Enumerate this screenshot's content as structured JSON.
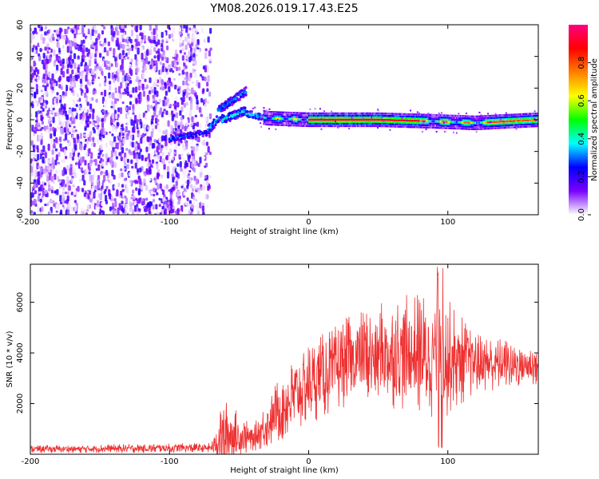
{
  "figure_title": "YM08.2026.019.17.43.E25",
  "chart_data": [
    {
      "type": "heatmap",
      "title": "YM08.2026.019.17.43.E25",
      "xlabel": "Height of straight line (km)",
      "ylabel": "Frequency (Hz)",
      "xlim": [
        -200,
        165
      ],
      "ylim": [
        -60,
        60
      ],
      "x_ticks": [
        -200,
        -100,
        0,
        100
      ],
      "y_ticks": [
        -60,
        -40,
        -20,
        0,
        20,
        40,
        60
      ],
      "grid": false,
      "colorbar": {
        "label": "Normalized spectral amplitude",
        "range": [
          0,
          1
        ],
        "ticks": [
          0.0,
          0.2,
          0.4,
          0.6,
          0.8
        ],
        "colors": [
          "#ffffff",
          "#7a00ff",
          "#0000ff",
          "#00ffff",
          "#00ff00",
          "#ffff00",
          "#ff7f00",
          "#ff0000",
          "#ff0080"
        ]
      },
      "ridge": {
        "description_points": [
          {
            "x": -100,
            "freq": -12,
            "amp": 0.3
          },
          {
            "x": -80,
            "freq": -8,
            "amp": 0.35
          },
          {
            "x": -70,
            "freq": 2,
            "amp": 0.4
          },
          {
            "x": -60,
            "freq": 8,
            "amp": 0.4
          },
          {
            "x": -45,
            "freq": 17,
            "amp": 0.35
          },
          {
            "x": -45,
            "freq": 4,
            "amp": 0.4
          },
          {
            "x": -30,
            "freq": 1,
            "amp": 0.5
          },
          {
            "x": 0,
            "freq": 0,
            "amp": 0.9
          },
          {
            "x": 50,
            "freq": 0,
            "amp": 0.95
          },
          {
            "x": 90,
            "freq": -1,
            "amp": 0.6
          },
          {
            "x": 120,
            "freq": -2,
            "amp": 0.55
          },
          {
            "x": 165,
            "freq": 0,
            "amp": 0.85
          }
        ]
      }
    },
    {
      "type": "line",
      "xlabel": "Height of straight line (km)",
      "ylabel": "SNR (10 * v/v)",
      "xlim": [
        -200,
        165
      ],
      "ylim": [
        0,
        7500
      ],
      "x_ticks": [
        -200,
        -100,
        0,
        100
      ],
      "y_ticks": [
        2000,
        4000,
        6000
      ],
      "grid": false,
      "line_color": "#ee3030",
      "envelope": [
        {
          "x": -200,
          "base": 200,
          "spread": 150
        },
        {
          "x": -70,
          "base": 250,
          "spread": 200
        },
        {
          "x": -60,
          "base": 800,
          "spread": 1600
        },
        {
          "x": -50,
          "base": 700,
          "spread": 900
        },
        {
          "x": -40,
          "base": 600,
          "spread": 500
        },
        {
          "x": -20,
          "base": 1800,
          "spread": 1400
        },
        {
          "x": 0,
          "base": 2800,
          "spread": 1600
        },
        {
          "x": 30,
          "base": 3700,
          "spread": 1800
        },
        {
          "x": 60,
          "base": 4000,
          "spread": 2200
        },
        {
          "x": 95,
          "base": 3900,
          "spread": 2600
        },
        {
          "x": 120,
          "base": 3600,
          "spread": 1200
        },
        {
          "x": 165,
          "base": 3500,
          "spread": 800
        }
      ]
    }
  ]
}
